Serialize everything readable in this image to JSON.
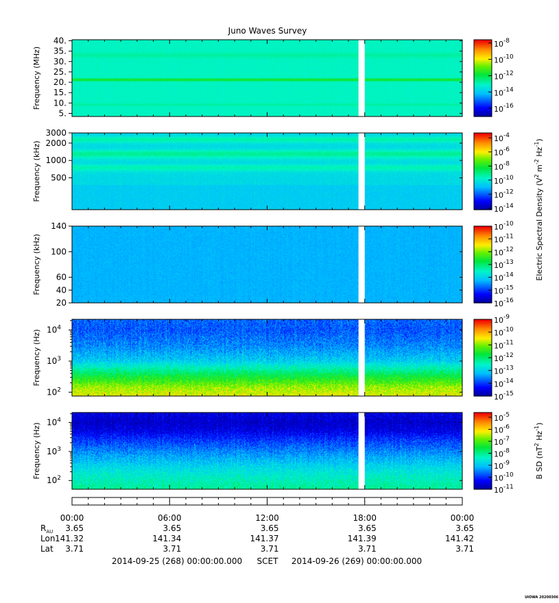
{
  "title": "Juno Waves Survey",
  "credit": "UIOWA 20200306",
  "colors": {
    "gap": "#ffffff",
    "axis": "#000000"
  },
  "chart_data": {
    "type": "heatmap",
    "gap": {
      "start": "2014-09-25 17:37",
      "end": "2014-09-25 18:00"
    },
    "time_axis": {
      "labels": [
        "00:00",
        "06:00",
        "12:00",
        "18:00",
        "00:00"
      ],
      "hours": [
        0,
        6,
        12,
        18,
        24
      ],
      "minor_tick_hours": 1
    },
    "ephemeris": [
      {
        "label": "R",
        "sub": "AU",
        "values": [
          "3.65",
          "3.65",
          "3.65",
          "3.65",
          "3.65"
        ]
      },
      {
        "label": "Lon",
        "sub": "",
        "values": [
          "141.32",
          "141.34",
          "141.37",
          "141.39",
          "141.42"
        ]
      },
      {
        "label": "Lat",
        "sub": "",
        "values": [
          "3.71",
          "3.71",
          "3.71",
          "3.71",
          "3.71"
        ]
      }
    ],
    "footer": {
      "left": "2014-09-25 (268) 00:00:00.000",
      "mid": "SCET",
      "right": "2014-09-26 (269) 00:00:00.000"
    },
    "panels": [
      {
        "ylabel": "Frequency (MHz)",
        "yscale": "linear",
        "ylim": [
          3.5,
          40.5
        ],
        "yticks": [
          {
            "v": 40,
            "t": "40."
          },
          {
            "v": 35,
            "t": "35."
          },
          {
            "v": 30,
            "t": "30."
          },
          {
            "v": 25,
            "t": "25."
          },
          {
            "v": 20,
            "t": "20."
          },
          {
            "v": 15,
            "t": "15."
          },
          {
            "v": 10,
            "t": "10."
          },
          {
            "v": 5,
            "t": "5."
          }
        ],
        "yminor": [],
        "colorbar": {
          "scale": "log",
          "range_exp": [
            -17,
            -7.6
          ],
          "ticks": [
            -8,
            -10,
            -12,
            -14,
            -16
          ],
          "minor": []
        },
        "base_level": -13.0,
        "features": [
          {
            "kind": "band",
            "center": 21.2,
            "width": 0.6,
            "level": -11.4
          },
          {
            "kind": "band",
            "center": 33.0,
            "width": 1.2,
            "level": -12.7
          },
          {
            "kind": "band",
            "center": 9.2,
            "width": 0.6,
            "level": -12.7
          }
        ]
      },
      {
        "ylabel": "Frequency (kHz)",
        "yscale": "log",
        "ylim": [
          140,
          3000
        ],
        "yticks": [
          {
            "v": 3000,
            "t": "3000"
          },
          {
            "v": 2000,
            "t": "2000"
          },
          {
            "v": 1000,
            "t": "1000"
          },
          {
            "v": 500,
            "t": "500"
          }
        ],
        "yminor": [],
        "colorbar": {
          "scale": "log",
          "range_exp": [
            -14.2,
            -3.3
          ],
          "ticks": [
            -4,
            -6,
            -8,
            -10,
            -12,
            -14
          ],
          "minor": []
        },
        "base_level": -10.3,
        "features": [
          {
            "kind": "band",
            "center": 2300,
            "width": 280,
            "level": -9.3
          },
          {
            "kind": "band",
            "center": 1300,
            "width": 220,
            "level": -9.1
          },
          {
            "kind": "band",
            "center": 750,
            "width": 100,
            "level": -9.4
          },
          {
            "kind": "lowf",
            "below": 380,
            "level": -10.6
          }
        ]
      },
      {
        "ylabel": "Frequency (kHz)",
        "yscale": "linear",
        "ylim": [
          20,
          140
        ],
        "yticks": [
          {
            "v": 140,
            "t": "140"
          },
          {
            "v": 100,
            "t": "100"
          },
          {
            "v": 60,
            "t": "60"
          },
          {
            "v": 40,
            "t": "40"
          },
          {
            "v": 20,
            "t": "20"
          }
        ],
        "yminor": [],
        "colorbar": {
          "scale": "log",
          "range_exp": [
            -16,
            -10
          ],
          "ticks": [
            -10,
            -11,
            -12,
            -13,
            -14,
            -15,
            -16
          ],
          "minor": []
        },
        "base_level": -14.25,
        "features": []
      },
      {
        "ylabel": "Frequency (Hz)",
        "yscale": "log",
        "ylim": [
          75,
          22000
        ],
        "yticks": [
          {
            "v": 10000,
            "t": "10"
          },
          {
            "v": 1000,
            "t": "10"
          },
          {
            "v": 100,
            "t": "10"
          }
        ],
        "ytick_exps": [
          "4",
          "3",
          "2"
        ],
        "yminor": [
          200,
          300,
          400,
          500,
          600,
          700,
          800,
          900,
          2000,
          3000,
          4000,
          5000,
          6000,
          7000,
          8000,
          9000,
          20000
        ],
        "colorbar": {
          "scale": "log",
          "range_exp": [
            -15,
            -9
          ],
          "ticks": [
            -9,
            -10,
            -11,
            -12,
            -13,
            -14,
            -15
          ],
          "minor": []
        },
        "profile": [
          [
            75,
            -10.5
          ],
          [
            150,
            -10.9
          ],
          [
            300,
            -11.6
          ],
          [
            600,
            -12.4
          ],
          [
            1000,
            -13.0
          ],
          [
            3000,
            -13.5
          ],
          [
            10000,
            -13.8
          ],
          [
            22000,
            -13.7
          ]
        ],
        "features": []
      },
      {
        "ylabel": "Frequency (Hz)",
        "yscale": "log",
        "ylim": [
          50,
          22000
        ],
        "yticks": [
          {
            "v": 10000,
            "t": "10"
          },
          {
            "v": 1000,
            "t": "10"
          },
          {
            "v": 100,
            "t": "10"
          }
        ],
        "ytick_exps": [
          "4",
          "3",
          "2"
        ],
        "yminor": [
          200,
          300,
          400,
          500,
          600,
          700,
          800,
          900,
          2000,
          3000,
          4000,
          5000,
          6000,
          7000,
          8000,
          9000,
          20000
        ],
        "colorbar": {
          "scale": "log",
          "range_exp": [
            -11,
            -4.6
          ],
          "ticks": [
            -5,
            -6,
            -7,
            -8,
            -9,
            -10,
            -11
          ],
          "minor": []
        },
        "profile": [
          [
            50,
            -8.0
          ],
          [
            150,
            -8.4
          ],
          [
            400,
            -8.9
          ],
          [
            1000,
            -9.4
          ],
          [
            2500,
            -9.9
          ],
          [
            5000,
            -10.4
          ],
          [
            10000,
            -10.6
          ],
          [
            22000,
            -10.4
          ]
        ],
        "features": []
      }
    ],
    "colorbar_titles": [
      {
        "text": "Electric Spectral Density (V",
        "sup1": "2",
        "mid": " m",
        "sup2": "-2",
        "mid2": " Hz",
        "sup3": "-1",
        "end": ")"
      },
      {
        "text": "B SD (nT",
        "sup1": "2",
        "mid": " Hz",
        "sup2": "-1",
        "mid2": "",
        "sup3": "",
        "end": ")"
      }
    ]
  }
}
